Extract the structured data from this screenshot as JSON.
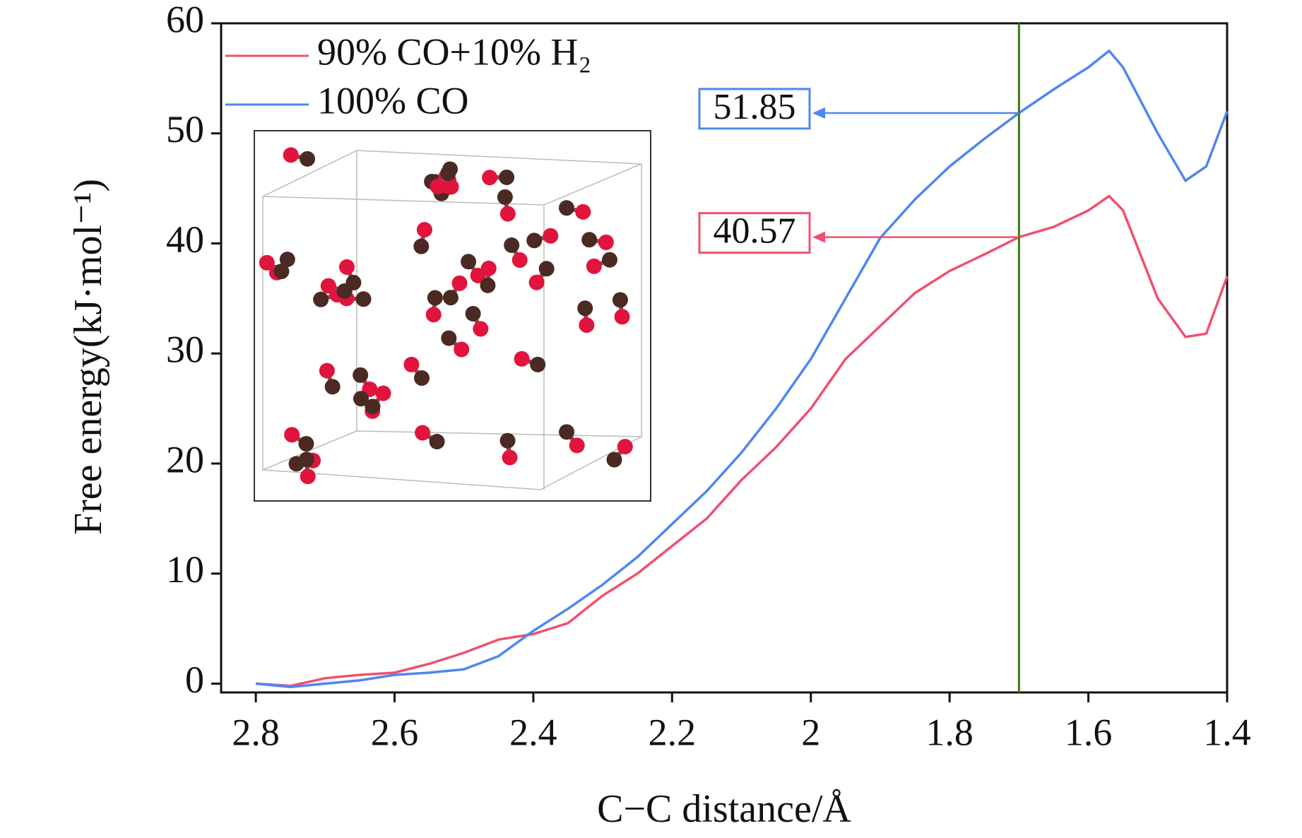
{
  "chart_data": {
    "type": "line",
    "xlabel": "C−C distance/Å",
    "ylabel": "Free energy(kJ·mol⁻¹)",
    "x": [
      2.8,
      2.75,
      2.7,
      2.65,
      2.6,
      2.55,
      2.5,
      2.45,
      2.4,
      2.35,
      2.3,
      2.25,
      2.2,
      2.15,
      2.1,
      2.05,
      2.0,
      1.95,
      1.9,
      1.85,
      1.8,
      1.75,
      1.7,
      1.65,
      1.6,
      1.57,
      1.55,
      1.5,
      1.46,
      1.43,
      1.4
    ],
    "series": [
      {
        "name": "90% CO+10% H₂",
        "color": "#f0506e",
        "values": [
          0,
          -0.2,
          0.5,
          0.8,
          1,
          1.8,
          2.8,
          4,
          4.5,
          5.5,
          8,
          10,
          12.5,
          15,
          18.5,
          21.5,
          25,
          29.5,
          32.5,
          35.5,
          37.5,
          39,
          40.57,
          41.5,
          43,
          44.3,
          43,
          35,
          31.5,
          31.8,
          37
        ]
      },
      {
        "name": "100% CO",
        "color": "#4f86f0",
        "values": [
          0,
          -0.3,
          0,
          0.3,
          0.8,
          1,
          1.3,
          2.5,
          4.8,
          6.8,
          9,
          11.5,
          14.5,
          17.5,
          21,
          25,
          29.5,
          35,
          40.5,
          44,
          47,
          49.5,
          51.85,
          54,
          56,
          57.5,
          56,
          50,
          45.7,
          47,
          52
        ]
      }
    ],
    "vline": 1.7,
    "vline_color": "#3a7a10",
    "annotations": [
      51.85,
      40.57
    ],
    "xlim": [
      2.85,
      1.4
    ],
    "xticks": [
      2.8,
      2.6,
      2.4,
      2.2,
      2.0,
      1.8,
      1.6,
      1.4
    ],
    "ylim": [
      -0.8,
      60
    ],
    "yticks": [
      0,
      10,
      20,
      30,
      40,
      50,
      60
    ]
  }
}
